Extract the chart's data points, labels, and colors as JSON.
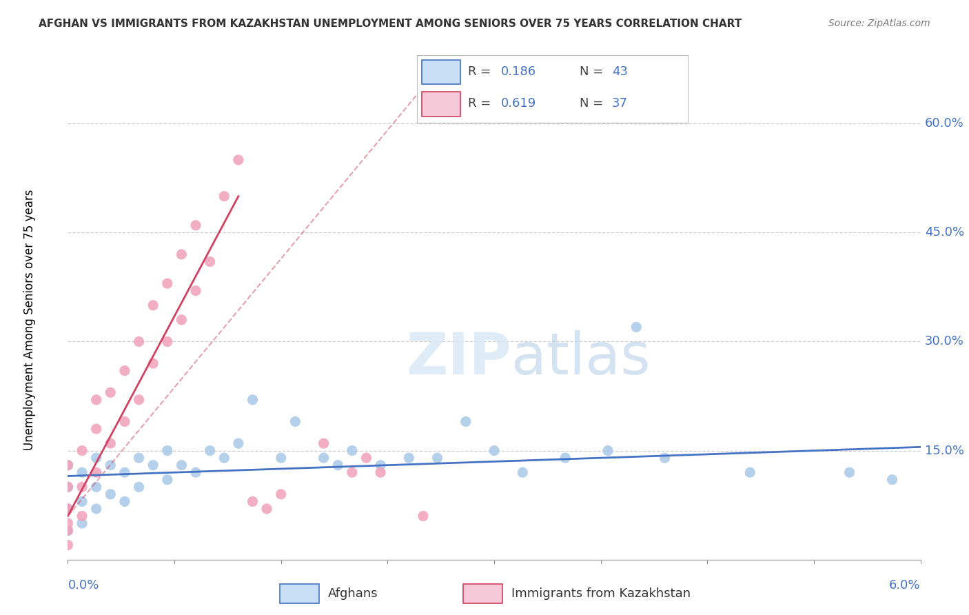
{
  "title": "AFGHAN VS IMMIGRANTS FROM KAZAKHSTAN UNEMPLOYMENT AMONG SENIORS OVER 75 YEARS CORRELATION CHART",
  "source": "Source: ZipAtlas.com",
  "ylabel": "Unemployment Among Seniors over 75 years",
  "right_yticks": [
    0.15,
    0.3,
    0.45,
    0.6
  ],
  "right_yticklabels": [
    "15.0%",
    "30.0%",
    "45.0%",
    "60.0%"
  ],
  "xmin": 0.0,
  "xmax": 0.06,
  "ymin": 0.0,
  "ymax": 0.66,
  "afghan_R": 0.186,
  "afghan_N": 43,
  "kazakh_R": 0.619,
  "kazakh_N": 37,
  "afghan_color": "#a8c8e8",
  "kazakh_color": "#f0a0b8",
  "afghan_line_color": "#4472c4",
  "kazakh_line_color": "#d04060",
  "legend_box_color": "#c8dff5",
  "legend_box_color2": "#f5c8d8",
  "afghan_scatter_x": [
    0.0,
    0.0,
    0.0,
    0.0,
    0.001,
    0.001,
    0.001,
    0.002,
    0.002,
    0.002,
    0.003,
    0.003,
    0.004,
    0.004,
    0.005,
    0.005,
    0.006,
    0.007,
    0.007,
    0.008,
    0.009,
    0.01,
    0.011,
    0.012,
    0.013,
    0.015,
    0.016,
    0.018,
    0.019,
    0.02,
    0.022,
    0.024,
    0.026,
    0.028,
    0.03,
    0.032,
    0.035,
    0.038,
    0.04,
    0.042,
    0.048,
    0.055,
    0.058
  ],
  "afghan_scatter_y": [
    0.04,
    0.07,
    0.1,
    0.13,
    0.05,
    0.08,
    0.12,
    0.07,
    0.1,
    0.14,
    0.09,
    0.13,
    0.08,
    0.12,
    0.1,
    0.14,
    0.13,
    0.11,
    0.15,
    0.13,
    0.12,
    0.15,
    0.14,
    0.16,
    0.22,
    0.14,
    0.19,
    0.14,
    0.13,
    0.15,
    0.13,
    0.14,
    0.14,
    0.19,
    0.15,
    0.12,
    0.14,
    0.15,
    0.32,
    0.14,
    0.12,
    0.12,
    0.11
  ],
  "kazakh_scatter_x": [
    0.0,
    0.0,
    0.0,
    0.0,
    0.0,
    0.0,
    0.001,
    0.001,
    0.001,
    0.002,
    0.002,
    0.002,
    0.003,
    0.003,
    0.004,
    0.004,
    0.005,
    0.005,
    0.006,
    0.006,
    0.007,
    0.007,
    0.008,
    0.008,
    0.009,
    0.009,
    0.01,
    0.011,
    0.012,
    0.013,
    0.014,
    0.015,
    0.018,
    0.02,
    0.021,
    0.022,
    0.025
  ],
  "kazakh_scatter_y": [
    0.02,
    0.04,
    0.05,
    0.07,
    0.1,
    0.13,
    0.06,
    0.1,
    0.15,
    0.12,
    0.18,
    0.22,
    0.16,
    0.23,
    0.19,
    0.26,
    0.22,
    0.3,
    0.27,
    0.35,
    0.3,
    0.38,
    0.33,
    0.42,
    0.37,
    0.46,
    0.41,
    0.5,
    0.55,
    0.08,
    0.07,
    0.09,
    0.16,
    0.12,
    0.14,
    0.12,
    0.06
  ],
  "kazakh_line_x0": 0.0,
  "kazakh_line_y0": 0.02,
  "kazakh_line_x1": 0.013,
  "kazakh_line_y1": 0.5,
  "kazakh_line_xdash_x0": 0.013,
  "kazakh_line_xdash_y0": 0.5,
  "kazakh_line_xdash_x1": 0.025,
  "kazakh_line_xdash_y1": 0.65
}
